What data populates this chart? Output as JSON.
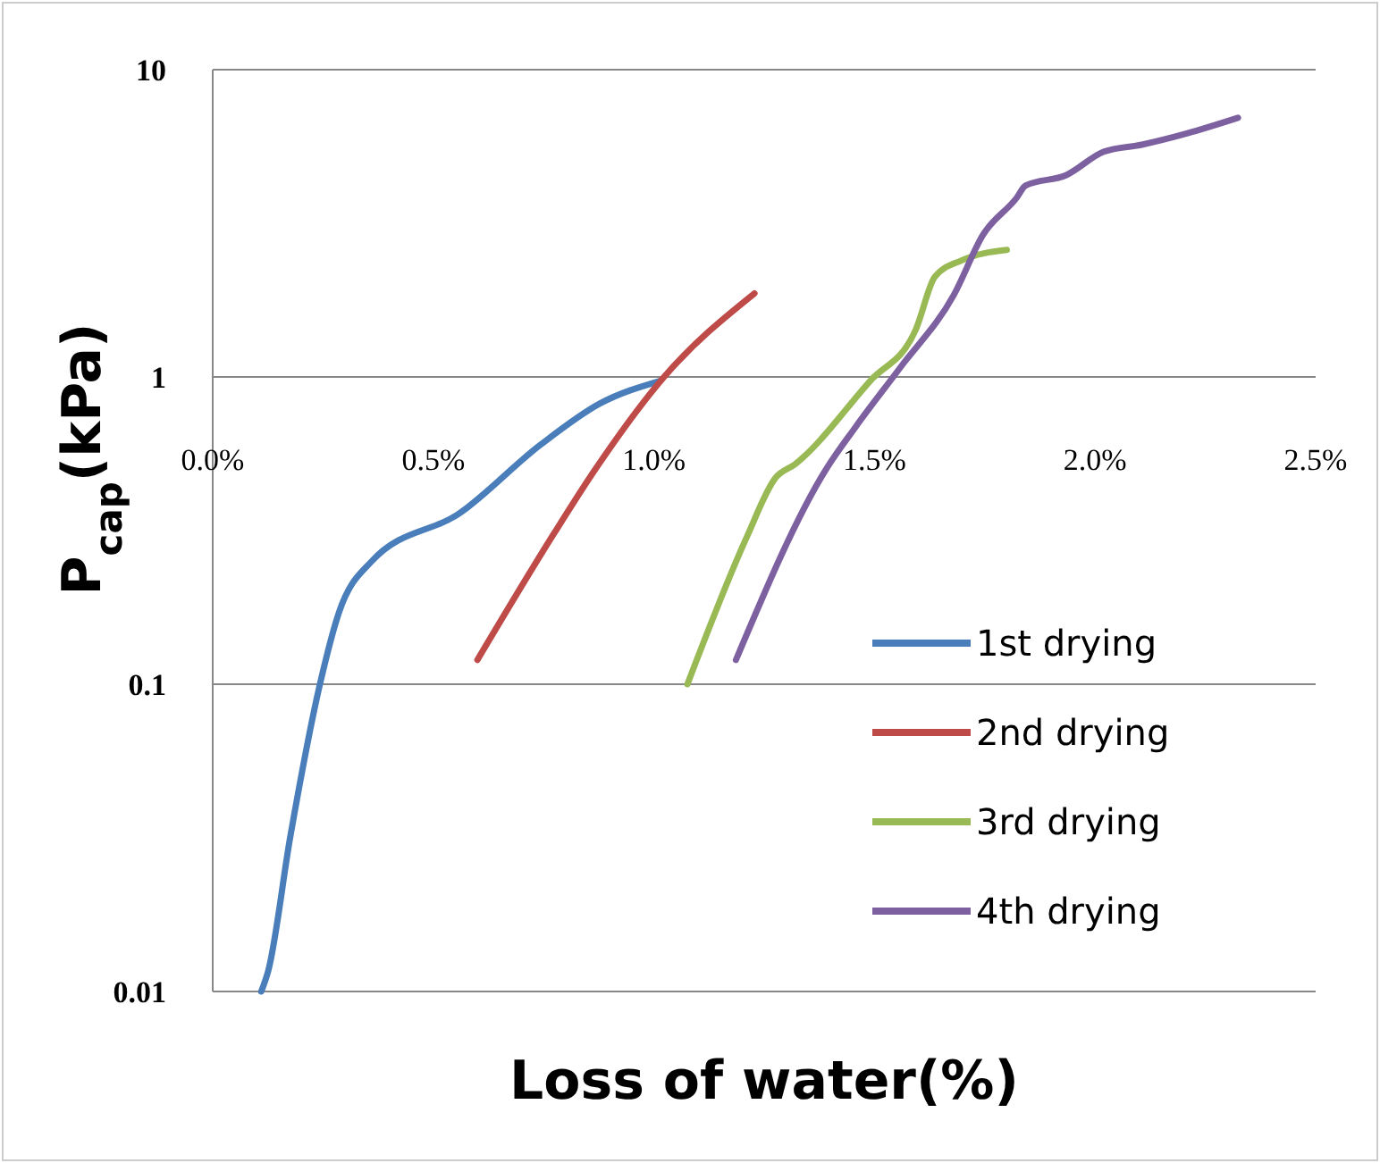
{
  "chart_data": {
    "type": "line",
    "xlabel": "Loss of water(%)",
    "ylabel": "P$_{cap}$(kPa)",
    "log": "y",
    "grid": "y",
    "legend": "bottom right",
    "marker": "none",
    "line_style": "solid",
    "xlim": [
      0,
      2.5
    ],
    "xticks": [
      {
        "value": 0,
        "label": "0.0%"
      },
      {
        "value": 0.5,
        "label": "0.5%"
      },
      {
        "value": 1,
        "label": "1.0%"
      },
      {
        "value": 1.5,
        "label": "1.5%"
      },
      {
        "value": 2,
        "label": "2.0%"
      },
      {
        "value": 2.5,
        "label": "2.5%"
      }
    ],
    "ylim": [
      0.01,
      10
    ],
    "yticks": [
      {
        "value": 0.01,
        "label": "0.01"
      },
      {
        "value": 0.1,
        "label": "0.1"
      },
      1,
      10
    ],
    "series": [
      {
        "name": "1st drying",
        "color": "#4a7ebb",
        "x": [
          0.11,
          0.126,
          0.176,
          0.243,
          0.286,
          0.36,
          0.563,
          0.742,
          0.878,
          1.013
        ],
        "values": [
          0.01,
          0.0117,
          0.032,
          0.1,
          0.171,
          0.251,
          0.363,
          0.6,
          0.82,
          0.97
        ]
      },
      {
        "name": "2nd drying",
        "color": "#be4b48",
        "x": [
          0.6,
          0.774,
          0.867,
          1.023,
          1.228
        ],
        "values": [
          0.12,
          0.31,
          0.5,
          1.0,
          1.87
        ]
      },
      {
        "name": "3rd drying",
        "color": "#98b954",
        "x": [
          1.076,
          1.21,
          1.276,
          1.32,
          1.49,
          1.594,
          1.637,
          1.696,
          1.8
        ],
        "values": [
          0.1,
          0.3,
          0.47,
          0.52,
          0.97,
          1.43,
          2.12,
          2.39,
          2.59
        ]
      },
      {
        "name": "4th drying",
        "color": "#7d60a0",
        "x": [
          1.186,
          1.39,
          1.458,
          1.56,
          1.68,
          1.746,
          1.823,
          1.842,
          1.935,
          2.02,
          2.106,
          2.208,
          2.324
        ],
        "values": [
          0.12,
          0.5,
          0.69,
          1.08,
          1.85,
          2.9,
          3.84,
          4.19,
          4.54,
          5.41,
          5.7,
          6.2,
          6.97
        ]
      }
    ]
  }
}
